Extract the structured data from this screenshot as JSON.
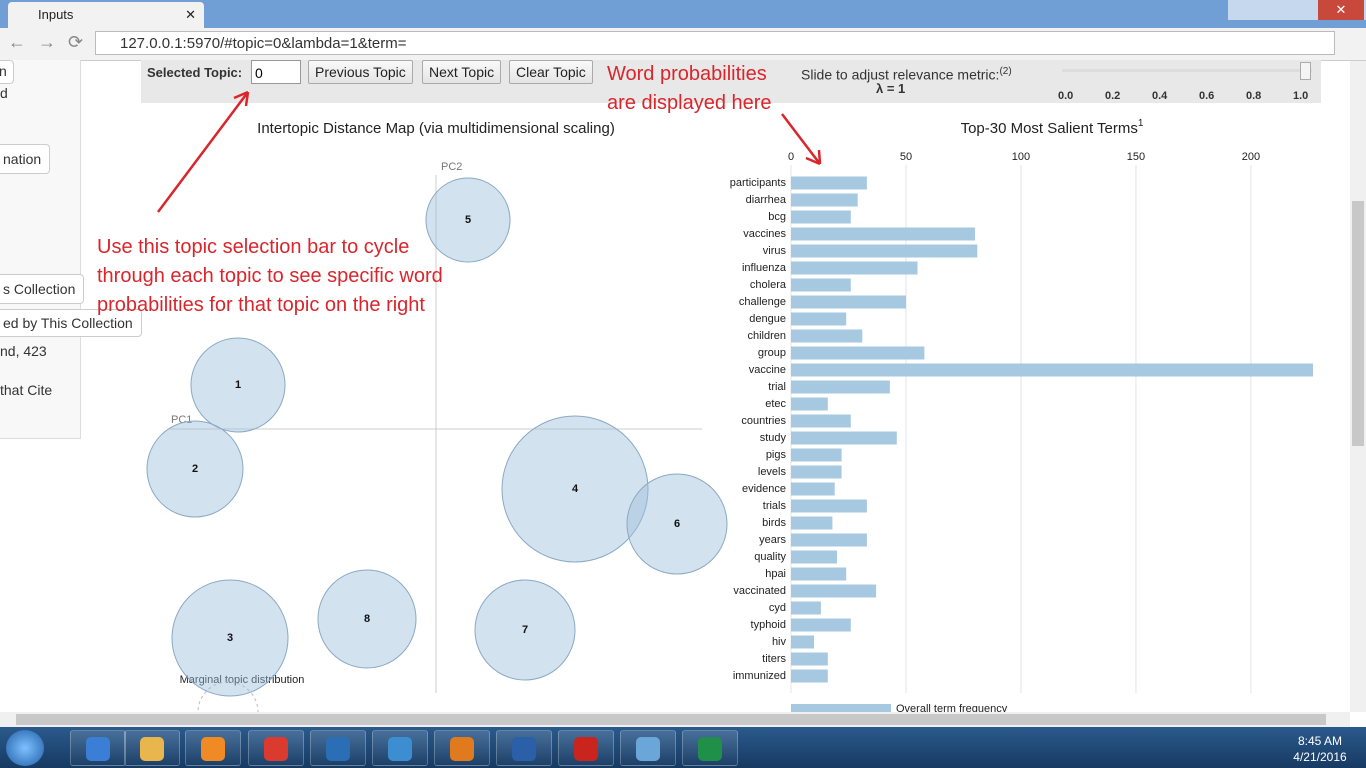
{
  "browser": {
    "tab_title": "Inputs",
    "url": "127.0.0.1:5970/#topic=0&lambda=1&term="
  },
  "sidebar": {
    "items": [
      "n",
      "d",
      "nation",
      "s Collection",
      "ed by This Collection",
      "nd, 423",
      "that Cite"
    ]
  },
  "toolbar": {
    "selected_topic_label": "Selected Topic:",
    "selected_topic_value": "0",
    "buttons": [
      "Previous Topic",
      "Next Topic",
      "Clear Topic"
    ],
    "slider_label": "Slide to adjust relevance metric:",
    "slider_note": "(2)",
    "lambda": "λ = 1",
    "slider_ticks": [
      "0.0",
      "0.2",
      "0.4",
      "0.6",
      "0.8",
      "1.0"
    ]
  },
  "annotations": {
    "right": [
      "Word probabilities",
      "are displayed here"
    ],
    "left": [
      "Use this topic selection bar to cycle",
      "through each topic to see specific word",
      "probabilities for that topic on the right"
    ]
  },
  "topic_map": {
    "title": "Intertopic Distance Map (via multidimensional scaling)",
    "pc1": "PC1",
    "pc2": "PC2",
    "topics": [
      "1",
      "2",
      "3",
      "4",
      "5",
      "6",
      "7",
      "8"
    ],
    "legend": "Marginal topic distribution"
  },
  "salient_terms": {
    "type": "bar",
    "title": "Top-30 Most Salient Terms",
    "title_note": "1",
    "categories": [
      "participants",
      "diarrhea",
      "bcg",
      "vaccines",
      "virus",
      "influenza",
      "cholera",
      "challenge",
      "dengue",
      "children",
      "group",
      "vaccine",
      "trial",
      "etec",
      "countries",
      "study",
      "pigs",
      "levels",
      "evidence",
      "trials",
      "birds",
      "years",
      "quality",
      "hpai",
      "vaccinated",
      "cyd",
      "typhoid",
      "hiv",
      "titers",
      "immunized"
    ],
    "values": [
      33,
      29,
      26,
      80,
      81,
      55,
      26,
      50,
      24,
      31,
      58,
      227,
      43,
      16,
      26,
      46,
      22,
      22,
      19,
      33,
      18,
      33,
      20,
      24,
      37,
      13,
      26,
      10,
      16,
      16
    ],
    "xlim": [
      0,
      227
    ],
    "xticks": [
      0,
      50,
      100,
      150,
      200
    ],
    "color": "#a6c8e0",
    "footer": "Overall term frequency"
  },
  "taskbar": {
    "time": "8:45 AM",
    "date": "4/21/2016"
  }
}
